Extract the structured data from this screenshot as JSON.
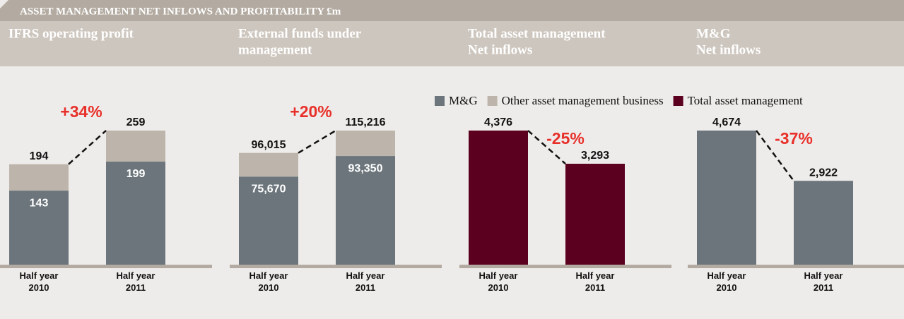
{
  "header": {
    "title": "ASSET MANAGEMENT NET INFLOWS AND PROFITABILITY  £m"
  },
  "chart_data": [
    {
      "type": "bar",
      "stacked": true,
      "title": [
        "IFRS operating profit"
      ],
      "categories": [
        "Half year 2010",
        "Half year 2011"
      ],
      "series": [
        {
          "name": "M&G",
          "color": "#6b757b",
          "values": [
            143,
            199
          ]
        },
        {
          "name": "Other asset management business",
          "color": "#bdb5ab",
          "values": [
            51,
            60
          ]
        }
      ],
      "totals": [
        194,
        259
      ],
      "annotation": "+34%"
    },
    {
      "type": "bar",
      "stacked": true,
      "title": [
        "External funds under",
        "management"
      ],
      "categories": [
        "Half year 2010",
        "Half year 2011"
      ],
      "series": [
        {
          "color": "#6b757b",
          "values": [
            75670,
            93350
          ],
          "value_labels": [
            "75,670",
            "93,350"
          ]
        },
        {
          "color": "#bdb5ab",
          "values": [
            20345,
            21866
          ]
        }
      ],
      "totals": [
        96015,
        115216
      ],
      "total_labels": [
        "96,015",
        "115,216"
      ],
      "annotation": "+20%"
    },
    {
      "type": "bar",
      "stacked": false,
      "title": [
        "Total asset management",
        "Net inflows"
      ],
      "categories": [
        "Half year 2010",
        "Half year 2011"
      ],
      "series": [
        {
          "name": "Total asset management",
          "color": "#5c0020",
          "values": [
            4376,
            3293
          ],
          "value_labels": [
            "4,376",
            "3,293"
          ]
        }
      ],
      "annotation": "-25%"
    },
    {
      "type": "bar",
      "stacked": false,
      "title": [
        "M&G",
        "Net inflows"
      ],
      "categories": [
        "Half year 2010",
        "Half year 2011"
      ],
      "series": [
        {
          "color": "#6b757b",
          "values": [
            4674,
            2922
          ],
          "value_labels": [
            "4,674",
            "2,922"
          ]
        }
      ],
      "annotation": "-37%"
    }
  ]
}
